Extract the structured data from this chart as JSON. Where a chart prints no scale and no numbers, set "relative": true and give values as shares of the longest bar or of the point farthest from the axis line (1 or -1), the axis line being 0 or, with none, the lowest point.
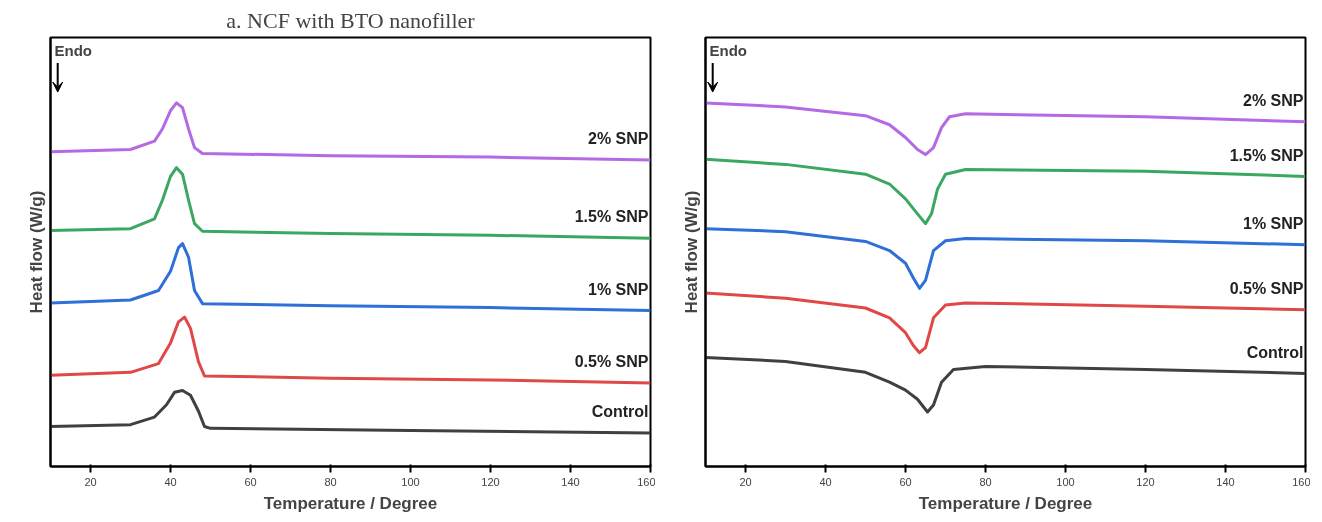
{
  "chart_data": [
    {
      "type": "line",
      "relative": true,
      "title": "a. NCF with BTO nanofiller",
      "xlabel": "Temperature / Degree",
      "ylabel": "Heat flow (W/g)",
      "annotations": [
        "Endo"
      ],
      "xlim": [
        10,
        160
      ],
      "xticks": [
        20,
        40,
        60,
        80,
        100,
        120,
        140,
        160
      ],
      "series": [
        {
          "name": "2% SNP",
          "color": "#b36ae2",
          "x": [
            10,
            30,
            36,
            38,
            40,
            41.5,
            43,
            44.5,
            46,
            48,
            80,
            120,
            160
          ],
          "values": [
            0.866,
            0.872,
            0.895,
            0.929,
            0.979,
            1.0,
            0.987,
            0.929,
            0.877,
            0.861,
            0.855,
            0.851,
            0.843
          ]
        },
        {
          "name": "1.5% SNP",
          "color": "#3aa860",
          "x": [
            10,
            30,
            36,
            38,
            40,
            41.5,
            43,
            44.5,
            46,
            48,
            80,
            120,
            160
          ],
          "values": [
            0.649,
            0.654,
            0.681,
            0.733,
            0.798,
            0.822,
            0.804,
            0.733,
            0.668,
            0.647,
            0.641,
            0.636,
            0.628
          ]
        },
        {
          "name": "1% SNP",
          "color": "#2f6fd8",
          "x": [
            10,
            30,
            37,
            40,
            42,
            43,
            44.5,
            46,
            48,
            80,
            120,
            160
          ],
          "values": [
            0.45,
            0.458,
            0.484,
            0.537,
            0.602,
            0.613,
            0.576,
            0.484,
            0.448,
            0.442,
            0.437,
            0.429
          ]
        },
        {
          "name": "0.5% SNP",
          "color": "#e04848",
          "x": [
            10,
            30,
            37,
            40,
            42,
            43.5,
            45,
            47,
            48.5,
            80,
            120,
            160
          ],
          "values": [
            0.251,
            0.259,
            0.283,
            0.34,
            0.398,
            0.411,
            0.38,
            0.288,
            0.249,
            0.243,
            0.238,
            0.23
          ]
        },
        {
          "name": "Control",
          "color": "#404040",
          "x": [
            10,
            30,
            36,
            39,
            41,
            43,
            45,
            47,
            48.5,
            50,
            100,
            160
          ],
          "values": [
            0.11,
            0.115,
            0.136,
            0.17,
            0.204,
            0.209,
            0.196,
            0.152,
            0.11,
            0.105,
            0.099,
            0.092
          ]
        }
      ]
    },
    {
      "type": "line",
      "relative": true,
      "xlabel": "Temperature / Degree",
      "ylabel": "Heat flow (W/g)",
      "annotations": [
        "Endo"
      ],
      "xlim": [
        10,
        160
      ],
      "xticks": [
        20,
        40,
        60,
        80,
        100,
        120,
        140,
        160
      ],
      "series": [
        {
          "name": "2% SNP",
          "color": "#b36ae2",
          "x": [
            10,
            30,
            50,
            56,
            60,
            63,
            65,
            67,
            69,
            71,
            75,
            120,
            160
          ],
          "values": [
            1.0,
            0.989,
            0.965,
            0.94,
            0.905,
            0.872,
            0.858,
            0.877,
            0.932,
            0.962,
            0.97,
            0.962,
            0.948
          ]
        },
        {
          "name": "1.5% SNP",
          "color": "#3aa860",
          "x": [
            10,
            30,
            50,
            56,
            60,
            63,
            65,
            66.5,
            68,
            70,
            75,
            120,
            160
          ],
          "values": [
            0.845,
            0.831,
            0.804,
            0.777,
            0.736,
            0.695,
            0.668,
            0.695,
            0.763,
            0.804,
            0.817,
            0.812,
            0.798
          ]
        },
        {
          "name": "1% SNP",
          "color": "#2f6fd8",
          "x": [
            10,
            30,
            50,
            56,
            60,
            62,
            63.5,
            65,
            67,
            70,
            75,
            120,
            160
          ],
          "values": [
            0.654,
            0.646,
            0.619,
            0.594,
            0.559,
            0.518,
            0.49,
            0.512,
            0.594,
            0.621,
            0.627,
            0.621,
            0.61
          ]
        },
        {
          "name": "0.5% SNP",
          "color": "#e04848",
          "x": [
            10,
            30,
            50,
            56,
            60,
            62,
            63.5,
            65,
            67,
            70,
            75,
            120,
            160
          ],
          "values": [
            0.477,
            0.463,
            0.436,
            0.409,
            0.368,
            0.332,
            0.313,
            0.327,
            0.409,
            0.444,
            0.45,
            0.441,
            0.431
          ]
        },
        {
          "name": "Control",
          "color": "#404040",
          "x": [
            10,
            30,
            50,
            56,
            60,
            63,
            65.5,
            67,
            69,
            72,
            80,
            120,
            160
          ],
          "values": [
            0.3,
            0.289,
            0.259,
            0.232,
            0.21,
            0.185,
            0.15,
            0.169,
            0.232,
            0.267,
            0.275,
            0.267,
            0.256
          ]
        }
      ]
    }
  ]
}
